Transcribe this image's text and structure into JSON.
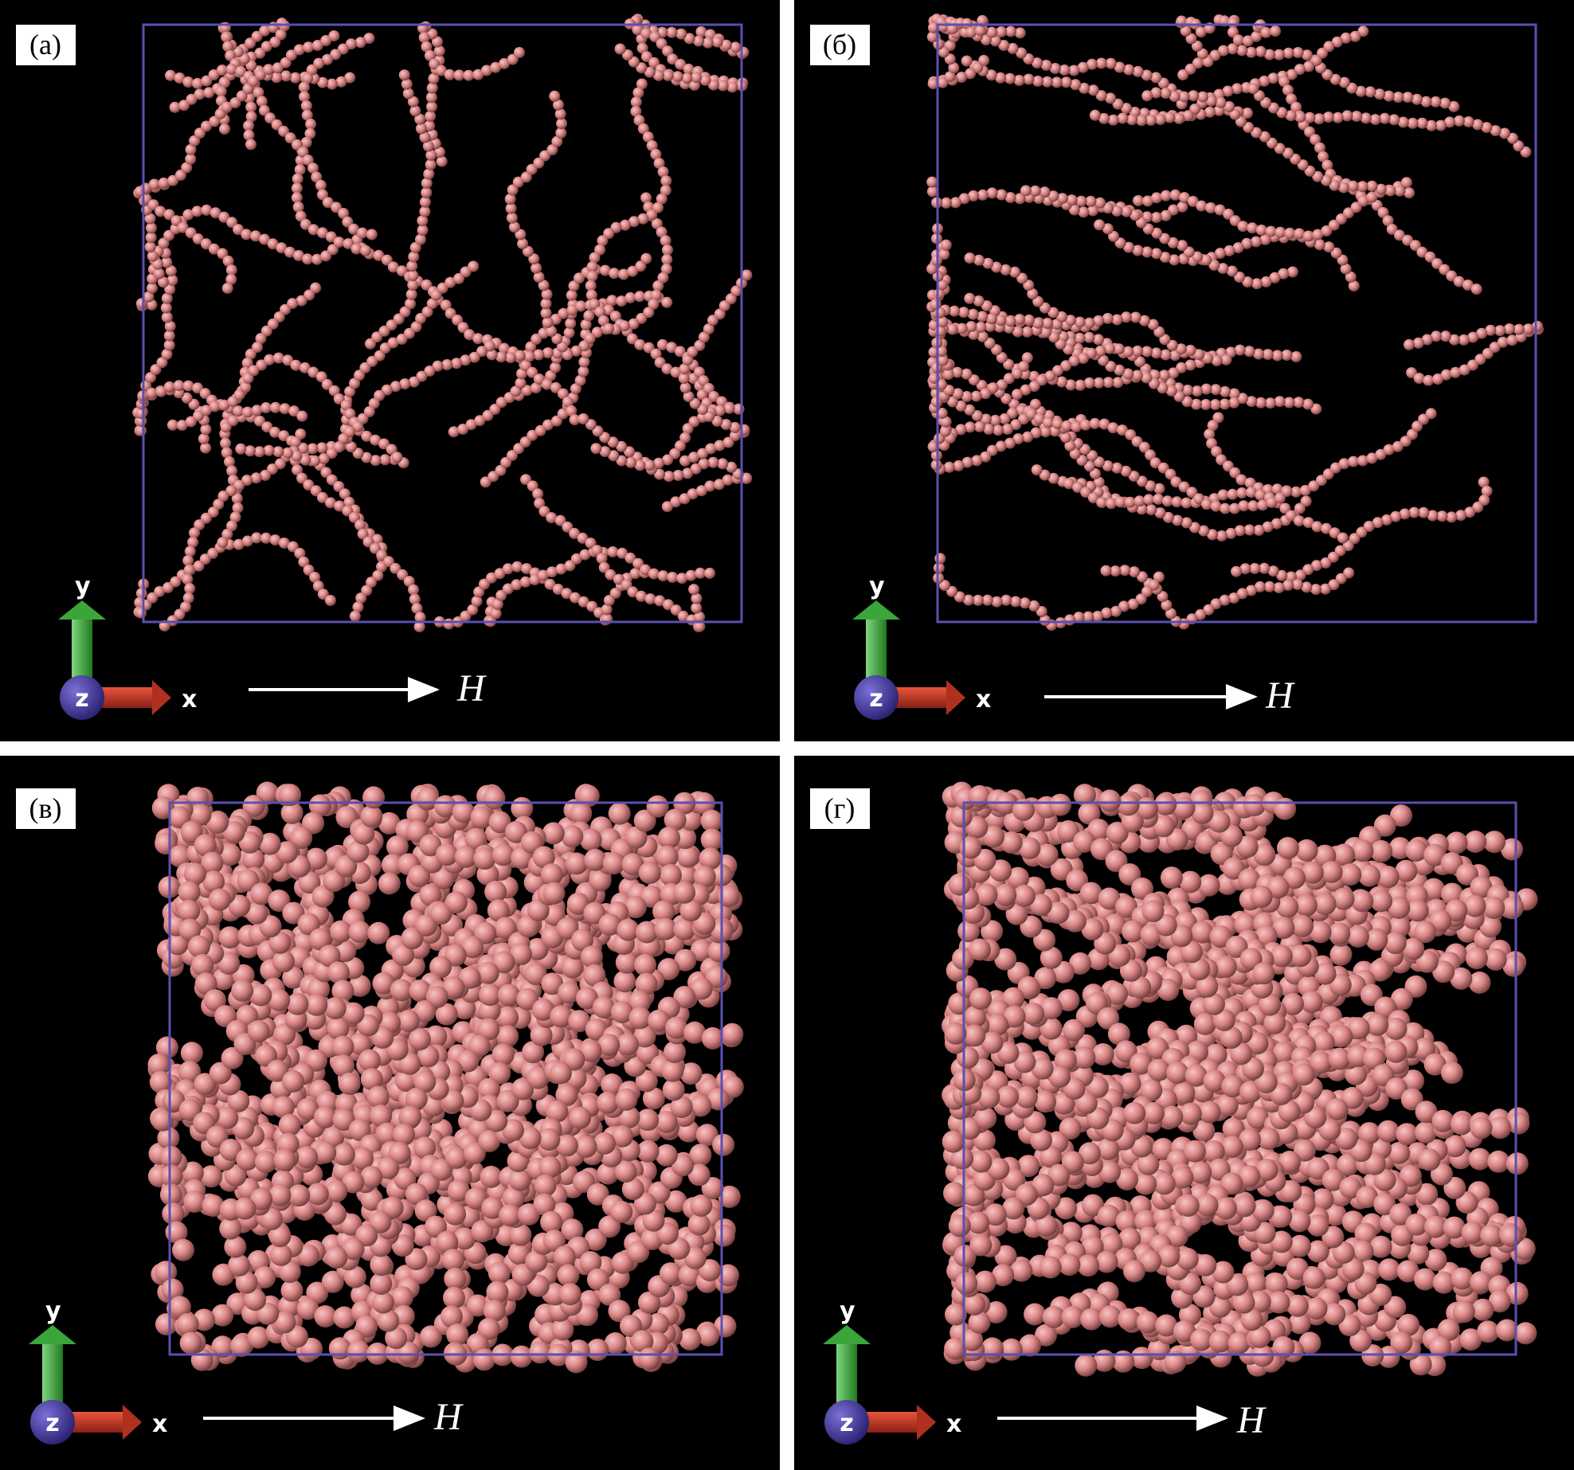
{
  "figure": {
    "panels": [
      {
        "label": "(а)",
        "axis_x": "x",
        "axis_y": "y",
        "axis_z": "z",
        "field": "H",
        "density": "sparse"
      },
      {
        "label": "(б)",
        "axis_x": "x",
        "axis_y": "y",
        "axis_z": "z",
        "field": "H",
        "density": "sparse"
      },
      {
        "label": "(в)",
        "axis_x": "x",
        "axis_y": "y",
        "axis_z": "z",
        "field": "H",
        "density": "dense"
      },
      {
        "label": "(г)",
        "axis_x": "x",
        "axis_y": "y",
        "axis_z": "z",
        "field": "H",
        "density": "dense"
      }
    ],
    "colors": {
      "background": "#000000",
      "box": "#5a4fb0",
      "particle": "#d98585",
      "x_axis": "#c0392b",
      "y_axis": "#3aa63a",
      "z_axis": "#4a3fa0"
    }
  }
}
